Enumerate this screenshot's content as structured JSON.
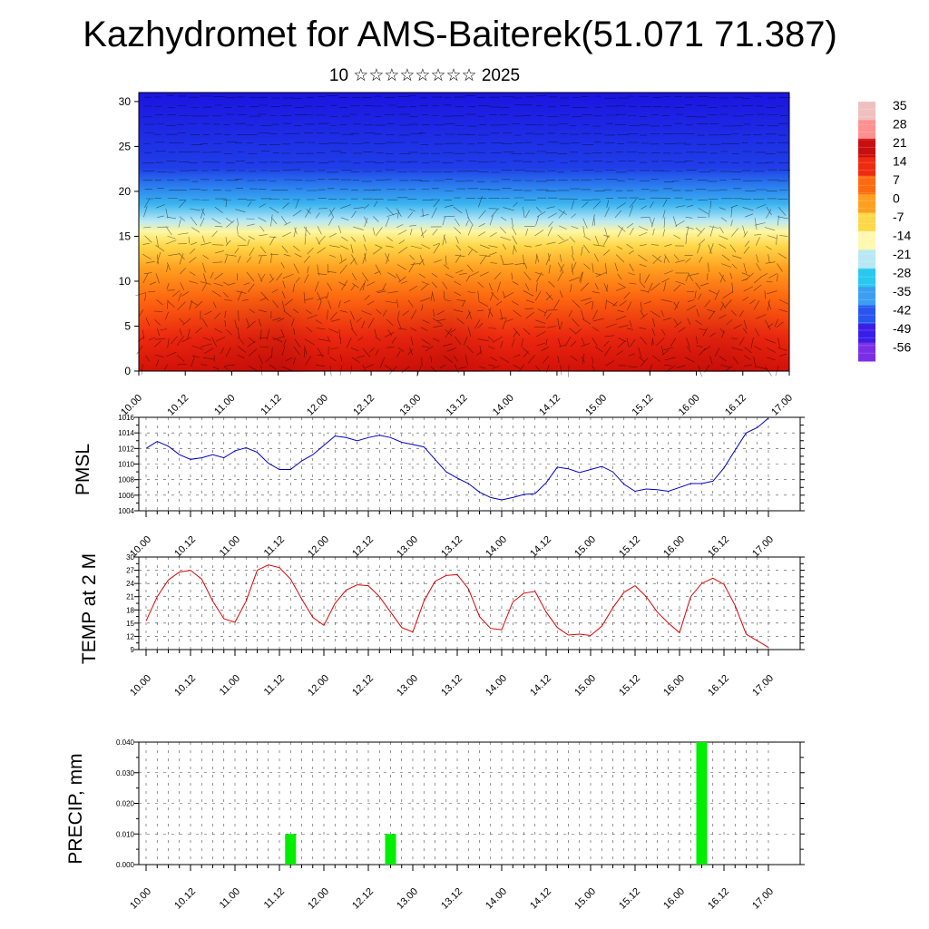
{
  "title": "Kazhydromet for AMS-Baiterek(51.071 71.387)",
  "subtitle": "10 ☆☆☆☆☆☆☆☆ 2025",
  "time_labels": [
    "10.00",
    "10.12",
    "11.00",
    "11.12",
    "12.00",
    "12.12",
    "13.00",
    "13.12",
    "14.00",
    "14.12",
    "15.00",
    "15.12",
    "16.00",
    "16.12",
    "17.00"
  ],
  "chart_data": [
    {
      "type": "heatmap",
      "name": "vertical-section",
      "x_ticks": [
        "10.00",
        "10.12",
        "11.00",
        "11.12",
        "12.00",
        "12.12",
        "13.00",
        "13.12",
        "14.00",
        "14.12",
        "15.00",
        "15.12",
        "16.00",
        "16.12",
        "17.00"
      ],
      "y_ticks": [
        "0",
        "5",
        "10",
        "15",
        "20",
        "25",
        "30"
      ],
      "ylim": [
        0,
        31
      ],
      "colorbar_labels": [
        "35",
        "28",
        "21",
        "14",
        "7",
        "0",
        "-7",
        "-14",
        "-21",
        "-28",
        "-35",
        "-42",
        "-49",
        "-56"
      ],
      "color_stops": [
        "#7b2ee6",
        "#3a1ee8",
        "#2855f0",
        "#3a9ef2",
        "#28c8f0",
        "#b8e8f5",
        "#fff8b0",
        "#ffd84a",
        "#ffa020",
        "#ff6a10",
        "#ee2a10",
        "#c80e0e",
        "#ff9090",
        "#f0c0c0"
      ]
    },
    {
      "type": "line",
      "name": "pmsl",
      "ylabel": "PMSL",
      "ylim": [
        1004,
        1016
      ],
      "y_ticks": [
        "1004",
        "1006",
        "1008",
        "1010",
        "1012",
        "1014",
        "1016"
      ],
      "x_ticks": [
        "10.00",
        "10.12",
        "11.00",
        "11.12",
        "12.00",
        "12.12",
        "13.00",
        "13.12",
        "14.00",
        "14.12",
        "15.00",
        "15.12",
        "16.00",
        "16.12",
        "17.00"
      ],
      "color": "#0000cc",
      "values": [
        1012.0,
        1012.9,
        1012.3,
        1011.2,
        1010.6,
        1010.8,
        1011.2,
        1010.8,
        1011.7,
        1012.1,
        1011.5,
        1010.1,
        1009.3,
        1009.3,
        1010.4,
        1011.2,
        1012.4,
        1013.6,
        1013.4,
        1013.0,
        1013.4,
        1013.7,
        1013.4,
        1012.8,
        1012.5,
        1012.2,
        1010.6,
        1009.0,
        1008.2,
        1007.5,
        1006.4,
        1005.7,
        1005.4,
        1005.7,
        1006.1,
        1006.2,
        1007.6,
        1009.6,
        1009.4,
        1008.9,
        1009.3,
        1009.7,
        1009.0,
        1007.4,
        1006.5,
        1006.8,
        1006.7,
        1006.5,
        1007.0,
        1007.5,
        1007.5,
        1007.8,
        1009.5,
        1011.8,
        1014.0,
        1014.7,
        1015.9
      ]
    },
    {
      "type": "line",
      "name": "temp2m",
      "ylabel": "TEMP at 2 M",
      "ylim": [
        9,
        30
      ],
      "y_ticks": [
        "9",
        "12",
        "15",
        "18",
        "21",
        "24",
        "27",
        "30"
      ],
      "x_ticks": [
        "10.00",
        "10.12",
        "11.00",
        "11.12",
        "12.00",
        "12.12",
        "13.00",
        "13.12",
        "14.00",
        "14.12",
        "15.00",
        "15.12",
        "16.00",
        "16.12",
        "17.00"
      ],
      "color": "#dd0000",
      "values": [
        15.5,
        21.0,
        24.8,
        26.6,
        27.0,
        25.0,
        20.0,
        16.0,
        15.2,
        20.0,
        27.0,
        28.2,
        27.6,
        25.0,
        20.5,
        16.3,
        14.5,
        19.5,
        22.5,
        23.7,
        23.5,
        21.0,
        17.5,
        14.0,
        13.0,
        20.0,
        24.5,
        25.8,
        26.0,
        22.8,
        16.5,
        13.8,
        13.5,
        19.8,
        21.8,
        22.2,
        17.5,
        14.0,
        12.3,
        12.5,
        12.2,
        14.3,
        18.5,
        22.0,
        23.5,
        21.0,
        17.5,
        15.0,
        12.8,
        21.0,
        24.0,
        25.2,
        23.8,
        19.0,
        12.5,
        11.0,
        9.5
      ]
    },
    {
      "type": "bar",
      "name": "precip",
      "ylabel": "PRECIP, mm",
      "ylim": [
        0,
        0.04
      ],
      "y_ticks": [
        "0.000",
        "0.010",
        "0.020",
        "0.030",
        "0.040"
      ],
      "x_ticks": [
        "10.00",
        "10.12",
        "11.00",
        "11.12",
        "12.00",
        "12.12",
        "13.00",
        "13.12",
        "14.00",
        "14.12",
        "15.00",
        "15.12",
        "16.00",
        "16.12",
        "17.00"
      ],
      "color": "#00ee00",
      "bars": [
        {
          "x_index": 13,
          "value": 0.01
        },
        {
          "x_index": 22,
          "value": 0.01
        },
        {
          "x_index": 50,
          "value": 0.04
        }
      ]
    }
  ]
}
